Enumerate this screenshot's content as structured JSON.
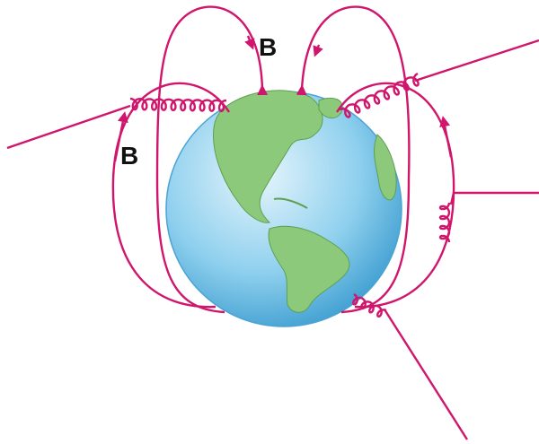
{
  "labels": [
    "B",
    "B"
  ]
}
